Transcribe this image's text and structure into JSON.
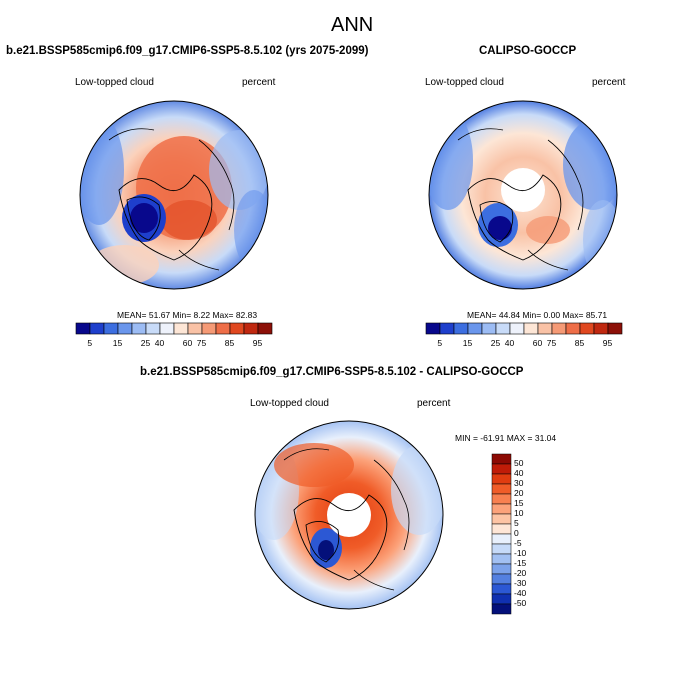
{
  "page_title": "ANN",
  "panels": {
    "model": {
      "title": "b.e21.BSSP585cmip6.f09_g17.CMIP6-SSP5-8.5.102 (yrs 2075-2099)",
      "left_label": "Low-topped cloud",
      "right_label": "percent",
      "stats": "MEAN=  51.67  Min=   8.22  Max=  82.83"
    },
    "obs": {
      "title": "CALIPSO-GOCCP",
      "left_label": "Low-topped cloud",
      "right_label": "percent",
      "stats": "MEAN=  44.84  Min=   0.00  Max=  85.71"
    },
    "diff": {
      "title": "b.e21.BSSP585cmip6.f09_g17.CMIP6-SSP5-8.5.102 - CALIPSO-GOCCP",
      "left_label": "Low-topped cloud",
      "right_label": "percent",
      "stats": "MIN = -61.91 MAX =  31.04"
    }
  },
  "colorbar_abs": {
    "labels": [
      "5",
      "15",
      "25",
      "40",
      "60",
      "75",
      "85",
      "95"
    ],
    "colors": [
      "#08088c",
      "#1e3fcc",
      "#3c6ee0",
      "#6a96ec",
      "#9cbcf4",
      "#c8dbf8",
      "#eef2fb",
      "#fde6d6",
      "#f9c2a6",
      "#f59a76",
      "#ee6e48",
      "#e04820",
      "#c02810",
      "#8c1008"
    ]
  },
  "colorbar_diff": {
    "labels": [
      "50",
      "40",
      "30",
      "20",
      "15",
      "10",
      "5",
      "0",
      "-5",
      "-10",
      "-15",
      "-20",
      "-30",
      "-40",
      "-50"
    ],
    "colors": [
      "#8c0a04",
      "#c01c08",
      "#e03c10",
      "#f05c28",
      "#f88050",
      "#fca27a",
      "#fdc4a4",
      "#fee6d6",
      "#e8f0fc",
      "#c6daf8",
      "#a2c0f2",
      "#7ca2ea",
      "#5480e0",
      "#2c58d4",
      "#1030b0",
      "#04107a"
    ]
  }
}
